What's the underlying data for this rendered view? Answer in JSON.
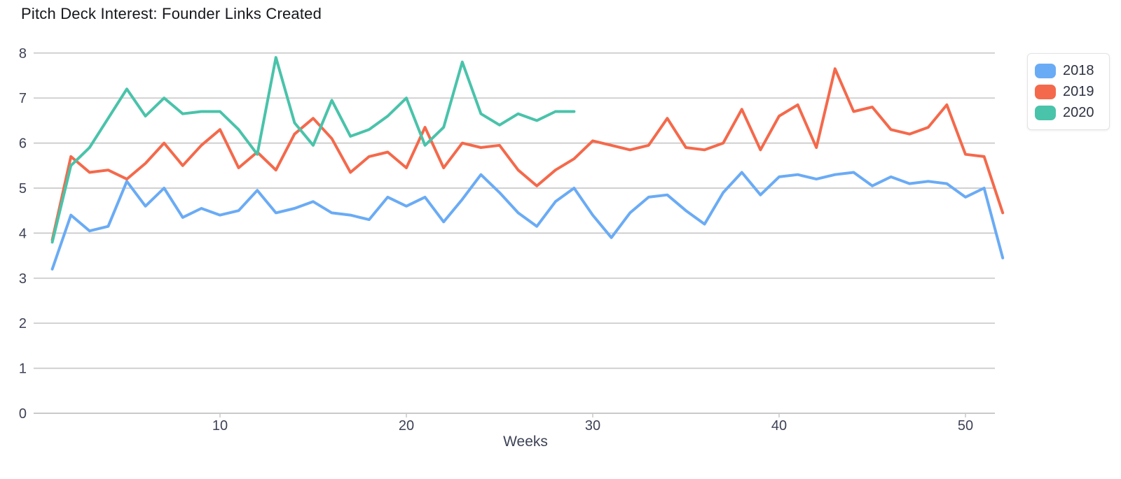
{
  "title": "Pitch Deck Interest: Founder Links Created",
  "axes": {
    "x_label": "Weeks",
    "x_ticks": [
      10,
      20,
      30,
      40,
      50
    ],
    "y_ticks": [
      0,
      1,
      2,
      3,
      4,
      5,
      6,
      7,
      8
    ]
  },
  "styles": {
    "grid_color": "#c9c9c9",
    "tick_text_color": "#3d4255",
    "title_color": "#15171c",
    "legend_border_color": "#e3e3e3",
    "background_color": "#ffffff"
  },
  "chart_data": {
    "type": "line",
    "title": "Pitch Deck Interest: Founder Links Created",
    "xlabel": "Weeks",
    "ylabel": "",
    "x_unit": "week number, starting at 1",
    "xlim": [
      1,
      52
    ],
    "ylim": [
      0,
      8
    ],
    "xticks": [
      10,
      20,
      30,
      40,
      50
    ],
    "yticks": [
      0,
      1,
      2,
      3,
      4,
      5,
      6,
      7,
      8
    ],
    "grid": "horizontal",
    "legend_position": "top-right",
    "series": [
      {
        "name": "2018",
        "color": "#6aabf5",
        "start_week": 1,
        "values": [
          3.2,
          4.4,
          4.05,
          4.15,
          5.15,
          4.6,
          5.0,
          4.35,
          4.55,
          4.4,
          4.5,
          4.95,
          4.45,
          4.55,
          4.7,
          4.45,
          4.4,
          4.3,
          4.8,
          4.6,
          4.8,
          4.25,
          4.75,
          5.3,
          4.9,
          4.45,
          4.15,
          4.7,
          5.0,
          4.4,
          3.9,
          4.45,
          4.8,
          4.85,
          4.5,
          4.2,
          4.9,
          5.35,
          4.85,
          5.25,
          5.3,
          5.2,
          5.3,
          5.35,
          5.05,
          5.25,
          5.1,
          5.15,
          5.1,
          4.8,
          5.0,
          3.45
        ]
      },
      {
        "name": "2019",
        "color": "#f4694b",
        "start_week": 1,
        "values": [
          3.85,
          5.7,
          5.35,
          5.4,
          5.2,
          5.55,
          6.0,
          5.5,
          5.95,
          6.3,
          5.45,
          5.8,
          5.4,
          6.2,
          6.55,
          6.1,
          5.35,
          5.7,
          5.8,
          5.45,
          6.35,
          5.45,
          6.0,
          5.9,
          5.95,
          5.4,
          5.05,
          5.4,
          5.65,
          6.05,
          5.95,
          5.85,
          5.95,
          6.55,
          5.9,
          5.85,
          6.0,
          6.75,
          5.85,
          6.6,
          6.85,
          5.9,
          7.65,
          6.7,
          6.8,
          6.3,
          6.2,
          6.35,
          6.85,
          5.75,
          5.7,
          4.45
        ]
      },
      {
        "name": "2020",
        "color": "#49c3aa",
        "start_week": 1,
        "values": [
          3.8,
          5.5,
          5.9,
          6.55,
          7.2,
          6.6,
          7.0,
          6.65,
          6.7,
          6.7,
          6.3,
          5.75,
          7.9,
          6.45,
          5.95,
          6.95,
          6.15,
          6.3,
          6.6,
          7.0,
          5.95,
          6.35,
          7.8,
          6.65,
          6.4,
          6.65,
          6.5,
          6.7,
          6.7
        ]
      }
    ]
  }
}
